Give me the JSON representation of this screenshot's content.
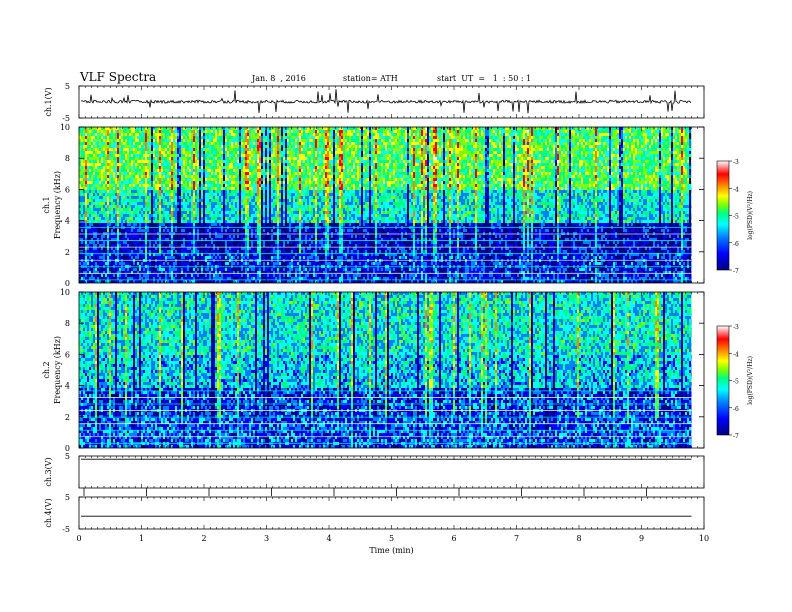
{
  "header": {
    "title": "VLF  Spectra",
    "date": "Jan. 8  , 2016",
    "station": "station= ATH",
    "start": "start  UT  =   1  : 50 : 1"
  },
  "colors": {
    "cmap": [
      "#000080",
      "#0000ff",
      "#0080ff",
      "#00ffff",
      "#00ff80",
      "#80ff00",
      "#ffff00",
      "#ff8000",
      "#ff0000",
      "#ffffff"
    ]
  },
  "chart_data": [
    {
      "type": "line",
      "ylabel": "ch.1(V)",
      "ylim": [
        -5,
        5
      ],
      "yticks": [
        "5",
        "-5"
      ],
      "series_summary": "waveform near 0.1 V with frequent short spikes"
    },
    {
      "type": "heatmap",
      "ylabel": "ch.1\nFrequency (kHz)",
      "ylabel_lines": [
        "ch.1",
        "Frequency (kHz)"
      ],
      "ylim": [
        0,
        10
      ],
      "yticks": [
        "0",
        "2",
        "4",
        "6",
        "8",
        "10"
      ],
      "colorbar": {
        "label": "log(PSD)(V²/Hz)",
        "range": [
          -7,
          -3
        ],
        "ticks": [
          "-3",
          "-4",
          "-5",
          "-6",
          "-7"
        ]
      },
      "band_summary": [
        {
          "freq_khz": [
            0,
            2
          ],
          "logpsd": -6.5
        },
        {
          "freq_khz": [
            2,
            4
          ],
          "logpsd": -6.7
        },
        {
          "freq_khz": [
            4,
            6
          ],
          "logpsd": -5.6
        },
        {
          "freq_khz": [
            6,
            10
          ],
          "logpsd": -5.0
        }
      ]
    },
    {
      "type": "heatmap",
      "ylabel": "ch.2\nFrequency (kHz)",
      "ylabel_lines": [
        "ch.2",
        "Frequency (kHz)"
      ],
      "ylim": [
        0,
        10
      ],
      "yticks": [
        "0",
        "2",
        "4",
        "6",
        "8",
        "10"
      ],
      "colorbar": {
        "label": "log(PSD)(V²/Hz)",
        "range": [
          -7,
          -3
        ],
        "ticks": [
          "-3",
          "-4",
          "-5",
          "-6",
          "-7"
        ]
      },
      "band_summary": [
        {
          "freq_khz": [
            0,
            2
          ],
          "logpsd": -6.3
        },
        {
          "freq_khz": [
            2,
            4
          ],
          "logpsd": -6.4
        },
        {
          "freq_khz": [
            4,
            6
          ],
          "logpsd": -5.8
        },
        {
          "freq_khz": [
            6,
            10
          ],
          "logpsd": -5.6
        }
      ]
    },
    {
      "type": "line",
      "ylabel": "ch.3(V)",
      "ylim": [
        -5,
        5
      ],
      "yticks": [
        "5"
      ],
      "series_summary": "flat trace near 4 V"
    },
    {
      "type": "line",
      "ylabel": "ch.4(V)",
      "ylim": [
        -5,
        5
      ],
      "yticks": [
        "5",
        "-5"
      ],
      "series_summary": "flat trace near -1 V"
    }
  ],
  "xaxis": {
    "label": "Time  (min)",
    "range": [
      0,
      10
    ],
    "ticks": [
      "0",
      "1",
      "2",
      "3",
      "4",
      "5",
      "6",
      "7",
      "8",
      "9",
      "10"
    ]
  }
}
